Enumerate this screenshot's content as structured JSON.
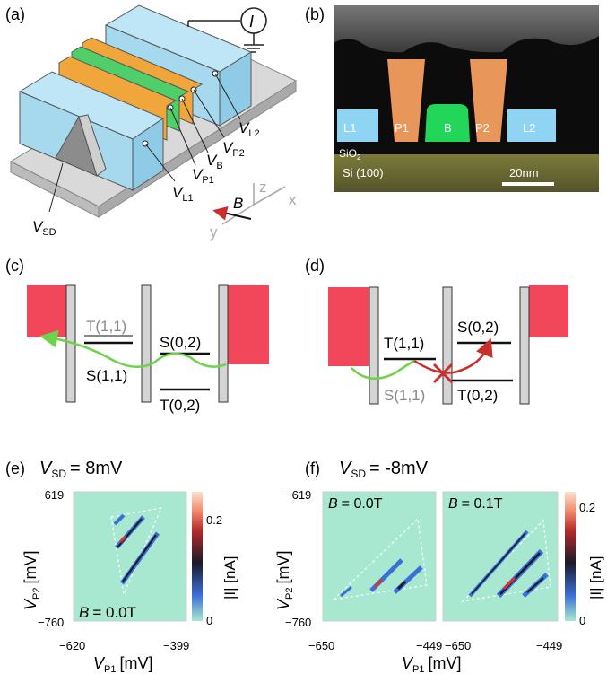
{
  "panels": {
    "a": {
      "label": "(a)",
      "current_symbol": "I",
      "v_l2": "V",
      "v_l2_sub": "L2",
      "v_p2": "V",
      "v_p2_sub": "P2",
      "v_b": "V",
      "v_b_sub": "B",
      "v_p1": "V",
      "v_p1_sub": "P1",
      "v_l1": "V",
      "v_l1_sub": "L1",
      "v_sd": "V",
      "v_sd_sub": "SD",
      "axis_z": "z",
      "axis_x": "x",
      "axis_y": "y",
      "field": "B"
    },
    "b": {
      "label": "(b)",
      "gates": [
        "L1",
        "P1",
        "B",
        "P2",
        "L2"
      ],
      "sio2": "SiO",
      "sio2_sub": "2",
      "si": "Si (100)",
      "scalebar": "20nm"
    },
    "c": {
      "label": "(c)",
      "t11": "T(1,1)",
      "s11": "S(1,1)",
      "s02": "S(0,2)",
      "t02": "T(0,2)"
    },
    "d": {
      "label": "(d)",
      "t11": "T(1,1)",
      "s11": "S(1,1)",
      "s02": "S(0,2)",
      "t02": "T(0,2)"
    },
    "e": {
      "label": "(e)",
      "title_v": "V",
      "title_sub": "SD",
      "title_val": "= 8mV",
      "field_b": "B",
      "field_val": "= 0.0T",
      "xticks": [
        "−620",
        "−399"
      ],
      "yticks": [
        "−619",
        "−760"
      ],
      "xlabel_v": "V",
      "xlabel_sub": "P1",
      "xlabel_unit": "[mV]",
      "ylabel_v": "V",
      "ylabel_sub": "P2",
      "ylabel_unit": "[mV]",
      "cbar_ticks": [
        "0.2",
        "0"
      ],
      "cbar_label": "|I| [nA]"
    },
    "f": {
      "label": "(f)",
      "title_v": "V",
      "title_sub": "SD",
      "title_val": "= -8mV",
      "field_b1": "B",
      "field_val1": "= 0.0T",
      "field_b2": "B",
      "field_val2": "= 0.1T",
      "xticks_left": [
        "−650",
        "−449"
      ],
      "xticks_right": [
        "−650",
        "−449"
      ],
      "yticks": [
        "−619",
        "−760"
      ],
      "xlabel_v": "V",
      "xlabel_sub": "P1",
      "xlabel_unit": "[mV]",
      "ylabel_v": "V",
      "ylabel_sub": "P2",
      "ylabel_unit": "[mV]",
      "cbar_ticks": [
        "0.2",
        "0"
      ],
      "cbar_label": "|I| [nA]"
    }
  },
  "colors": {
    "gate_blue": "#a6d8ee",
    "gate_orange": "#f0a63a",
    "gate_green": "#4fcf6a",
    "reservoir_red": "#f2465a",
    "tunnel_green": "#6ed24a",
    "blocked_red": "#c9302c",
    "map_bg": "#a8e8d0"
  }
}
